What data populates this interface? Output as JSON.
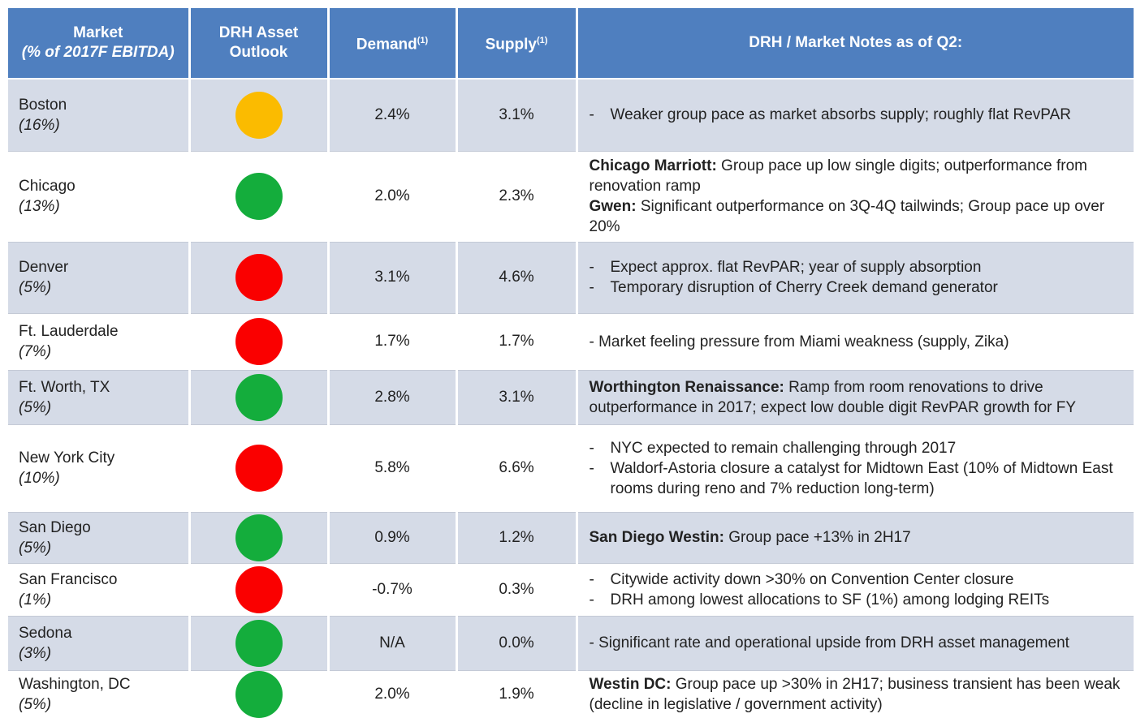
{
  "table": {
    "header": {
      "market": "Market",
      "market_sub": "(% of 2017F EBITDA)",
      "outlook": "DRH Asset Outlook",
      "demand": "Demand",
      "demand_sup": "(1)",
      "supply": "Supply",
      "supply_sup": "(1)",
      "notes": "DRH / Market Notes as of Q2:"
    },
    "rows": [
      {
        "market": "Boston",
        "share": "(16%)",
        "outlook_color": "#fbbb00",
        "demand": "2.4%",
        "supply": "3.1%",
        "notes": [
          {
            "marker": "-",
            "text": "Weaker group pace as market absorbs supply; roughly flat RevPAR"
          }
        ]
      },
      {
        "market": "Chicago",
        "share": "(13%)",
        "outlook_color": "#14ad3c",
        "demand": "2.0%",
        "supply": "2.3%",
        "notes": [
          {
            "bold": "Chicago Marriott:",
            "text": " Group pace up low single digits; outperformance from renovation ramp"
          },
          {
            "bold": "Gwen:",
            "text": " Significant outperformance on 3Q-4Q tailwinds; Group pace up over 20%"
          }
        ]
      },
      {
        "market": "Denver",
        "share": "(5%)",
        "outlook_color": "#fa0000",
        "demand": "3.1%",
        "supply": "4.6%",
        "notes": [
          {
            "marker": "-",
            "text": "Expect approx. flat RevPAR; year of supply absorption"
          },
          {
            "marker": "-",
            "text": "Temporary disruption of Cherry Creek demand generator"
          }
        ]
      },
      {
        "market": "Ft. Lauderdale",
        "share": "(7%)",
        "outlook_color": "#fa0000",
        "demand": "1.7%",
        "supply": "1.7%",
        "notes": [
          {
            "text": "- Market feeling pressure from Miami weakness (supply, Zika)"
          }
        ]
      },
      {
        "market": "Ft. Worth, TX",
        "share": "(5%)",
        "outlook_color": "#14ad3c",
        "demand": "2.8%",
        "supply": "3.1%",
        "notes": [
          {
            "bold": "Worthington Renaissance:",
            "text": " Ramp from room renovations to drive outperformance in 2017; expect low double digit RevPAR growth for FY"
          }
        ]
      },
      {
        "market": "New York City",
        "share": "(10%)",
        "outlook_color": "#fa0000",
        "demand": "5.8%",
        "supply": "6.6%",
        "notes": [
          {
            "marker": "-",
            "text": "NYC expected to remain challenging through 2017"
          },
          {
            "marker": "-",
            "text": "Waldorf-Astoria closure a catalyst for Midtown East (10% of Midtown East rooms during reno and 7% reduction long-term)"
          }
        ]
      },
      {
        "market": "San Diego",
        "share": "(5%)",
        "outlook_color": "#14ad3c",
        "demand": "0.9%",
        "supply": "1.2%",
        "notes": [
          {
            "bold": "San Diego Westin:",
            "text": " Group pace +13% in 2H17"
          }
        ]
      },
      {
        "market": "San Francisco",
        "share": "(1%)",
        "outlook_color": "#fa0000",
        "demand": "-0.7%",
        "supply": "0.3%",
        "notes": [
          {
            "marker": "-",
            "text": "Citywide activity down >30% on Convention Center closure"
          },
          {
            "marker": "-",
            "text": "DRH among lowest allocations to SF (1%) among lodging REITs"
          }
        ]
      },
      {
        "market": "Sedona",
        "share": "(3%)",
        "outlook_color": "#14ad3c",
        "demand": "N/A",
        "supply": "0.0%",
        "notes": [
          {
            "text": "- Significant rate and operational upside from DRH asset management"
          }
        ]
      },
      {
        "market": "Washington, DC",
        "share": "(5%)",
        "outlook_color": "#14ad3c",
        "demand": "2.0%",
        "supply": "1.9%",
        "notes": [
          {
            "bold": "Westin DC:",
            "text": " Group pace up >30% in 2H17; business transient has been weak (decline in legislative / government activity)"
          }
        ]
      }
    ]
  }
}
